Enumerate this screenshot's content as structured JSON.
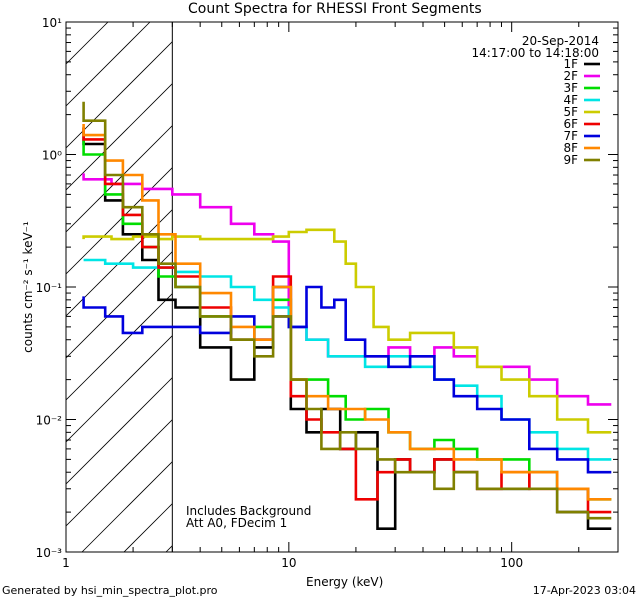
{
  "chart_data": {
    "type": "line",
    "title": "Count Spectra for RHESSI Front Segments",
    "xlabel": "Energy (keV)",
    "ylabel": "counts cm⁻² s⁻¹ keV⁻¹",
    "xscale": "log",
    "yscale": "log",
    "xlim": [
      1,
      300
    ],
    "ylim": [
      0.001,
      10
    ],
    "x_ticks": [
      {
        "v": 1,
        "label": "1"
      },
      {
        "v": 10,
        "label": "10"
      },
      {
        "v": 100,
        "label": "100"
      }
    ],
    "y_ticks": [
      {
        "v": 0.001,
        "label": "10⁻³"
      },
      {
        "v": 0.01,
        "label": "10⁻²"
      },
      {
        "v": 0.1,
        "label": "10⁻¹"
      },
      {
        "v": 1,
        "label": "10⁰"
      },
      {
        "v": 10,
        "label": "10¹"
      }
    ],
    "shaded_region": {
      "from_kev": 1,
      "to_kev": 3,
      "pattern": "diagonal-hatch"
    },
    "date": "20-Sep-2014",
    "time_range": "14:17:00 to 14:18:00",
    "annotations": [
      "Includes Background",
      "Att A0, FDecim 1"
    ],
    "series": [
      {
        "name": "1F",
        "color": "#000000",
        "points": [
          [
            1.2,
            1.6
          ],
          [
            1.5,
            1.2
          ],
          [
            1.8,
            0.45
          ],
          [
            2.2,
            0.25
          ],
          [
            2.6,
            0.16
          ],
          [
            3.1,
            0.08
          ],
          [
            4,
            0.07
          ],
          [
            5.5,
            0.035
          ],
          [
            7,
            0.02
          ],
          [
            8.5,
            0.035
          ],
          [
            10.2,
            0.1
          ],
          [
            12,
            0.012
          ],
          [
            14,
            0.008
          ],
          [
            17,
            0.012
          ],
          [
            20,
            0.006
          ],
          [
            25,
            0.008
          ],
          [
            30,
            0.0015
          ],
          [
            35,
            0.005
          ],
          [
            45,
            0.004
          ],
          [
            55,
            0.005
          ],
          [
            70,
            0.004
          ],
          [
            90,
            0.003
          ],
          [
            120,
            0.003
          ],
          [
            160,
            0.004
          ],
          [
            220,
            0.002
          ],
          [
            280,
            0.0015
          ]
        ]
      },
      {
        "name": "2F",
        "color": "#ee00ee",
        "points": [
          [
            1.2,
            0.72
          ],
          [
            1.6,
            0.65
          ],
          [
            2.2,
            0.6
          ],
          [
            3,
            0.55
          ],
          [
            4,
            0.5
          ],
          [
            5.5,
            0.4
          ],
          [
            7,
            0.3
          ],
          [
            8.5,
            0.25
          ],
          [
            10,
            0.22
          ],
          [
            12,
            0.05
          ],
          [
            15,
            0.04
          ],
          [
            18,
            0.03
          ],
          [
            22,
            0.03
          ],
          [
            28,
            0.03
          ],
          [
            35,
            0.035
          ],
          [
            45,
            0.03
          ],
          [
            55,
            0.035
          ],
          [
            70,
            0.03
          ],
          [
            90,
            0.025
          ],
          [
            120,
            0.025
          ],
          [
            160,
            0.02
          ],
          [
            220,
            0.015
          ],
          [
            280,
            0.013
          ]
        ]
      },
      {
        "name": "3F",
        "color": "#00dd00",
        "points": [
          [
            1.2,
            1.3
          ],
          [
            1.5,
            1.0
          ],
          [
            1.8,
            0.5
          ],
          [
            2.2,
            0.3
          ],
          [
            2.6,
            0.2
          ],
          [
            3.1,
            0.12
          ],
          [
            4,
            0.1
          ],
          [
            5.5,
            0.06
          ],
          [
            7,
            0.04
          ],
          [
            8.5,
            0.05
          ],
          [
            10.2,
            0.08
          ],
          [
            12,
            0.02
          ],
          [
            15,
            0.02
          ],
          [
            18,
            0.015
          ],
          [
            22,
            0.01
          ],
          [
            28,
            0.012
          ],
          [
            35,
            0.008
          ],
          [
            45,
            0.006
          ],
          [
            55,
            0.007
          ],
          [
            70,
            0.006
          ],
          [
            90,
            0.005
          ],
          [
            120,
            0.005
          ],
          [
            160,
            0.004
          ],
          [
            220,
            0.003
          ],
          [
            280,
            0.0025
          ]
        ]
      },
      {
        "name": "4F",
        "color": "#00e5e5",
        "points": [
          [
            1.2,
            0.16
          ],
          [
            1.5,
            0.16
          ],
          [
            2,
            0.15
          ],
          [
            2.6,
            0.14
          ],
          [
            3.1,
            0.14
          ],
          [
            4,
            0.13
          ],
          [
            5.5,
            0.12
          ],
          [
            7,
            0.1
          ],
          [
            8.5,
            0.08
          ],
          [
            10,
            0.07
          ],
          [
            12,
            0.05
          ],
          [
            15,
            0.04
          ],
          [
            18,
            0.03
          ],
          [
            22,
            0.03
          ],
          [
            28,
            0.025
          ],
          [
            35,
            0.03
          ],
          [
            45,
            0.025
          ],
          [
            55,
            0.02
          ],
          [
            70,
            0.018
          ],
          [
            90,
            0.015
          ],
          [
            120,
            0.01
          ],
          [
            160,
            0.008
          ],
          [
            220,
            0.006
          ],
          [
            280,
            0.005
          ]
        ]
      },
      {
        "name": "5F",
        "color": "#cccc00",
        "points": [
          [
            1.2,
            0.23
          ],
          [
            1.6,
            0.24
          ],
          [
            2,
            0.23
          ],
          [
            2.6,
            0.24
          ],
          [
            3,
            0.23
          ],
          [
            4,
            0.24
          ],
          [
            5.5,
            0.23
          ],
          [
            7,
            0.23
          ],
          [
            8.5,
            0.23
          ],
          [
            10,
            0.24
          ],
          [
            12,
            0.26
          ],
          [
            14,
            0.27
          ],
          [
            16,
            0.27
          ],
          [
            18,
            0.22
          ],
          [
            20,
            0.15
          ],
          [
            24,
            0.1
          ],
          [
            28,
            0.05
          ],
          [
            35,
            0.04
          ],
          [
            45,
            0.045
          ],
          [
            55,
            0.045
          ],
          [
            70,
            0.035
          ],
          [
            90,
            0.025
          ],
          [
            120,
            0.02
          ],
          [
            160,
            0.015
          ],
          [
            220,
            0.01
          ],
          [
            280,
            0.008
          ]
        ]
      },
      {
        "name": "6F",
        "color": "#ee0000",
        "points": [
          [
            1.2,
            1.6
          ],
          [
            1.5,
            1.3
          ],
          [
            1.8,
            0.6
          ],
          [
            2.2,
            0.35
          ],
          [
            2.6,
            0.2
          ],
          [
            3.1,
            0.14
          ],
          [
            4,
            0.12
          ],
          [
            5.5,
            0.07
          ],
          [
            7,
            0.04
          ],
          [
            8.5,
            0.04
          ],
          [
            10.2,
            0.12
          ],
          [
            12,
            0.015
          ],
          [
            14,
            0.01
          ],
          [
            17,
            0.008
          ],
          [
            20,
            0.006
          ],
          [
            25,
            0.0025
          ],
          [
            30,
            0.004
          ],
          [
            35,
            0.005
          ],
          [
            45,
            0.004
          ],
          [
            55,
            0.005
          ],
          [
            70,
            0.004
          ],
          [
            90,
            0.003
          ],
          [
            120,
            0.004
          ],
          [
            160,
            0.003
          ],
          [
            220,
            0.003
          ],
          [
            280,
            0.002
          ]
        ]
      },
      {
        "name": "7F",
        "color": "#0000dd",
        "points": [
          [
            1.2,
            0.085
          ],
          [
            1.5,
            0.07
          ],
          [
            1.8,
            0.06
          ],
          [
            2.2,
            0.045
          ],
          [
            2.6,
            0.05
          ],
          [
            3.1,
            0.05
          ],
          [
            4,
            0.05
          ],
          [
            5.5,
            0.045
          ],
          [
            7,
            0.06
          ],
          [
            8.5,
            0.04
          ],
          [
            10,
            0.06
          ],
          [
            12,
            0.05
          ],
          [
            14,
            0.1
          ],
          [
            16,
            0.07
          ],
          [
            18,
            0.08
          ],
          [
            22,
            0.04
          ],
          [
            28,
            0.03
          ],
          [
            35,
            0.025
          ],
          [
            45,
            0.03
          ],
          [
            55,
            0.02
          ],
          [
            70,
            0.015
          ],
          [
            90,
            0.012
          ],
          [
            120,
            0.01
          ],
          [
            160,
            0.006
          ],
          [
            220,
            0.005
          ],
          [
            280,
            0.004
          ]
        ]
      },
      {
        "name": "8F",
        "color": "#ff8800",
        "points": [
          [
            1.2,
            1.7
          ],
          [
            1.5,
            1.4
          ],
          [
            1.8,
            0.9
          ],
          [
            2.2,
            0.7
          ],
          [
            2.6,
            0.45
          ],
          [
            3.1,
            0.25
          ],
          [
            4,
            0.15
          ],
          [
            5.5,
            0.09
          ],
          [
            7,
            0.05
          ],
          [
            8.5,
            0.04
          ],
          [
            10.2,
            0.1
          ],
          [
            12,
            0.02
          ],
          [
            15,
            0.015
          ],
          [
            18,
            0.012
          ],
          [
            22,
            0.012
          ],
          [
            28,
            0.01
          ],
          [
            35,
            0.008
          ],
          [
            45,
            0.006
          ],
          [
            55,
            0.006
          ],
          [
            70,
            0.005
          ],
          [
            90,
            0.005
          ],
          [
            120,
            0.004
          ],
          [
            160,
            0.004
          ],
          [
            220,
            0.003
          ],
          [
            280,
            0.0025
          ]
        ]
      },
      {
        "name": "9F",
        "color": "#808000",
        "points": [
          [
            1.2,
            2.5
          ],
          [
            1.5,
            1.8
          ],
          [
            1.8,
            0.7
          ],
          [
            2.2,
            0.4
          ],
          [
            2.6,
            0.25
          ],
          [
            3.1,
            0.15
          ],
          [
            4,
            0.1
          ],
          [
            5.5,
            0.06
          ],
          [
            7,
            0.04
          ],
          [
            8.5,
            0.03
          ],
          [
            10.2,
            0.06
          ],
          [
            12,
            0.02
          ],
          [
            14,
            0.012
          ],
          [
            17,
            0.006
          ],
          [
            20,
            0.008
          ],
          [
            25,
            0.006
          ],
          [
            30,
            0.005
          ],
          [
            35,
            0.004
          ],
          [
            45,
            0.004
          ],
          [
            55,
            0.003
          ],
          [
            70,
            0.004
          ],
          [
            90,
            0.003
          ],
          [
            120,
            0.003
          ],
          [
            160,
            0.003
          ],
          [
            220,
            0.002
          ],
          [
            280,
            0.0018
          ]
        ]
      }
    ]
  },
  "footer": {
    "left": "Generated by hsi_min_spectra_plot.pro",
    "right": "17-Apr-2023 03:04"
  }
}
